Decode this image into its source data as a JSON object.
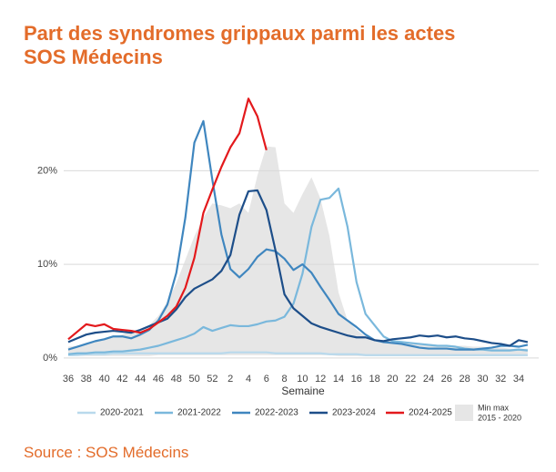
{
  "chart_data": {
    "type": "line",
    "title": [
      "Part des syndromes grippaux parmi les actes",
      "SOS Médecins"
    ],
    "x_label": "Semaine",
    "source": "Source : SOS Médecins",
    "categories": [
      "36",
      null,
      "38",
      null,
      "40",
      null,
      "42",
      null,
      "44",
      null,
      "46",
      null,
      "48",
      null,
      "50",
      null,
      "52",
      null,
      "2",
      null,
      "4",
      null,
      "6",
      null,
      "8",
      null,
      "10",
      null,
      "12",
      null,
      "14",
      null,
      "16",
      null,
      "18",
      null,
      "20",
      null,
      "22",
      null,
      "24",
      null,
      "26",
      null,
      "28",
      null,
      "30",
      null,
      "32",
      null,
      "34",
      null
    ],
    "ylim": [
      -0.5,
      28.5
    ],
    "yticks": [
      {
        "value": 0,
        "label": "0%"
      },
      {
        "value": 10,
        "label": "10%"
      },
      {
        "value": 20,
        "label": "20%"
      }
    ],
    "grid": true,
    "band": {
      "name_lines": [
        "Min max",
        "2015 - 2020"
      ],
      "color": "#e6e6e6",
      "max": [
        1.2,
        1.3,
        1.5,
        1.8,
        2.0,
        2.2,
        2.5,
        2.8,
        3.0,
        3.5,
        4.5,
        6.0,
        8.0,
        10.5,
        13.0,
        15.0,
        16.5,
        16.3,
        16.0,
        16.5,
        15.5,
        19.5,
        22.6,
        22.5,
        16.5,
        15.5,
        17.5,
        19.3,
        17.0,
        13.0,
        7.0,
        4.0,
        3.0,
        2.3,
        2.0,
        1.9,
        1.8,
        1.7,
        1.6,
        1.5,
        1.5,
        1.4,
        1.4,
        1.3,
        1.3,
        1.2,
        1.2,
        1.1,
        1.1,
        1.0,
        1.0,
        1.0
      ],
      "min": [
        0.2,
        0.2,
        0.2,
        0.2,
        0.2,
        0.2,
        0.2,
        0.2,
        0.2,
        0.2,
        0.3,
        0.3,
        0.3,
        0.3,
        0.3,
        0.3,
        0.3,
        0.3,
        0.3,
        0.3,
        0.3,
        0.3,
        0.3,
        0.3,
        0.3,
        0.3,
        0.3,
        0.3,
        0.3,
        0.3,
        0.2,
        0.2,
        0.2,
        0.2,
        0.2,
        0.2,
        0.2,
        0.2,
        0.2,
        0.2,
        0.2,
        0.2,
        0.2,
        0.2,
        0.2,
        0.2,
        0.2,
        0.2,
        0.2,
        0.2,
        0.2,
        0.2
      ]
    },
    "series": [
      {
        "name": "2020-2021",
        "color": "#b9d9ec",
        "values": [
          0.3,
          0.3,
          0.4,
          0.4,
          0.4,
          0.5,
          0.5,
          0.5,
          0.5,
          0.5,
          0.5,
          0.5,
          0.5,
          0.5,
          0.5,
          0.5,
          0.5,
          0.5,
          0.6,
          0.6,
          0.6,
          0.6,
          0.6,
          0.5,
          0.5,
          0.5,
          0.5,
          0.5,
          0.5,
          0.4,
          0.4,
          0.4,
          0.4,
          0.3,
          0.3,
          0.3,
          0.3,
          0.3,
          0.3,
          0.3,
          0.3,
          0.3,
          0.3,
          0.3,
          0.3,
          0.3,
          0.3,
          0.3,
          0.3,
          0.3,
          0.3,
          0.3
        ]
      },
      {
        "name": "2021-2022",
        "color": "#7ab8dc",
        "values": [
          0.4,
          0.5,
          0.5,
          0.6,
          0.6,
          0.7,
          0.7,
          0.8,
          0.9,
          1.1,
          1.3,
          1.6,
          1.9,
          2.2,
          2.6,
          3.3,
          2.9,
          3.2,
          3.5,
          3.4,
          3.4,
          3.6,
          3.9,
          4.0,
          4.4,
          5.8,
          9.0,
          14.0,
          16.9,
          17.1,
          18.1,
          14.0,
          8.1,
          4.7,
          3.5,
          2.3,
          1.8,
          1.7,
          1.6,
          1.5,
          1.4,
          1.3,
          1.3,
          1.2,
          1.0,
          0.9,
          0.9,
          0.8,
          0.8,
          0.8,
          0.9,
          0.8
        ]
      },
      {
        "name": "2022-2023",
        "color": "#3f86bf",
        "values": [
          0.9,
          1.2,
          1.5,
          1.8,
          2.0,
          2.3,
          2.3,
          2.1,
          2.5,
          3.0,
          4.0,
          5.7,
          9.1,
          15.0,
          23.0,
          25.3,
          19.0,
          13.2,
          9.5,
          8.6,
          9.5,
          10.8,
          11.6,
          11.4,
          10.6,
          9.4,
          10.0,
          9.1,
          7.6,
          6.2,
          4.7,
          4.0,
          3.3,
          2.5,
          1.9,
          1.7,
          1.6,
          1.5,
          1.3,
          1.1,
          1.0,
          1.0,
          1.0,
          0.9,
          0.9,
          0.9,
          1.0,
          1.1,
          1.3,
          1.3,
          1.2,
          1.4
        ]
      },
      {
        "name": "2023-2024",
        "color": "#1d4e89",
        "values": [
          1.7,
          2.1,
          2.5,
          2.7,
          2.8,
          2.9,
          2.8,
          2.7,
          3.0,
          3.4,
          3.8,
          4.2,
          5.2,
          6.5,
          7.4,
          7.9,
          8.4,
          9.3,
          11.0,
          15.3,
          17.8,
          17.9,
          15.8,
          11.5,
          6.8,
          5.3,
          4.5,
          3.7,
          3.3,
          3.0,
          2.7,
          2.4,
          2.2,
          2.2,
          1.9,
          1.8,
          2.0,
          2.1,
          2.2,
          2.4,
          2.3,
          2.4,
          2.2,
          2.3,
          2.1,
          2.0,
          1.8,
          1.6,
          1.5,
          1.3,
          1.9,
          1.7
        ]
      },
      {
        "name": "2024-2025",
        "color": "#e3191c",
        "values": [
          2.0,
          2.8,
          3.6,
          3.4,
          3.6,
          3.1,
          3.0,
          2.9,
          2.7,
          3.1,
          3.8,
          4.5,
          5.5,
          7.5,
          10.7,
          15.5,
          18.0,
          20.4,
          22.5,
          24.0,
          27.7,
          25.8,
          22.2,
          null,
          null,
          null,
          null,
          null,
          null,
          null,
          null,
          null,
          null,
          null,
          null,
          null,
          null,
          null,
          null,
          null,
          null,
          null,
          null,
          null,
          null,
          null,
          null,
          null,
          null,
          null,
          null,
          null
        ]
      }
    ]
  }
}
